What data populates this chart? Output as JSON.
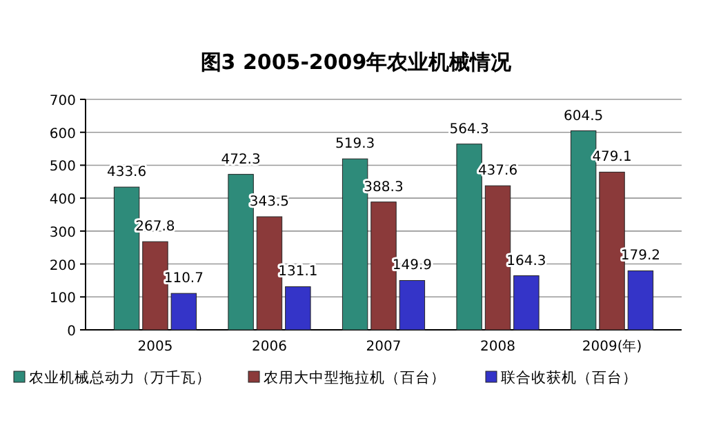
{
  "chart_data": {
    "type": "bar",
    "title": "图3 2005-2009年农业机械情况",
    "categories": [
      "2005",
      "2006",
      "2007",
      "2008",
      "2009(年)"
    ],
    "series": [
      {
        "name": "农业机械总动力（万千瓦）",
        "color": "#2e8b7a",
        "values": [
          433.6,
          472.3,
          519.3,
          564.3,
          604.5
        ]
      },
      {
        "name": "农用大中型拖拉机（百台）",
        "color": "#8b3a3a",
        "values": [
          267.8,
          343.5,
          388.3,
          437.6,
          479.1
        ]
      },
      {
        "name": "联合收获机（百台）",
        "color": "#3434c8",
        "values": [
          110.7,
          131.1,
          149.9,
          164.3,
          179.2
        ]
      }
    ],
    "ylim": [
      0,
      700
    ],
    "yticks": [
      0,
      100,
      200,
      300,
      400,
      500,
      600,
      700
    ],
    "grid": "y",
    "legend": "bottom",
    "data_labels": true
  }
}
